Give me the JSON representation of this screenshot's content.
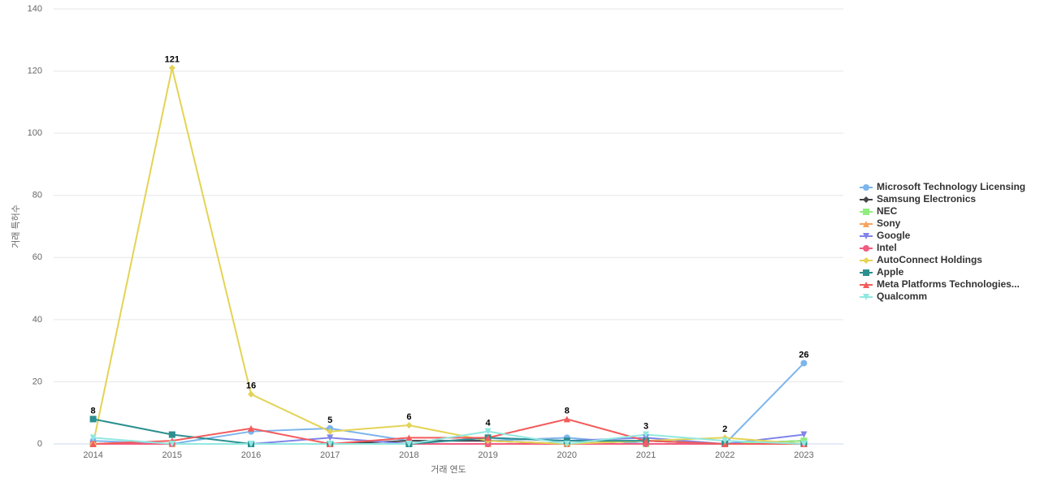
{
  "chart_data": {
    "type": "line",
    "x_label": "거래 연도",
    "y_label": "거래 특허수",
    "categories": [
      "2014",
      "2015",
      "2016",
      "2017",
      "2018",
      "2019",
      "2020",
      "2021",
      "2022",
      "2023"
    ],
    "ylim": [
      0,
      140
    ],
    "yticks": [
      0,
      20,
      40,
      60,
      80,
      100,
      120,
      140
    ],
    "grid": true,
    "legend": "right",
    "series": [
      {
        "name": "Microsoft Technology Licensing",
        "color": "#7cb5ec",
        "marker": "circle",
        "values": [
          1,
          0,
          4,
          5,
          1,
          1,
          2,
          0,
          0,
          26
        ]
      },
      {
        "name": "Samsung Electronics",
        "color": "#434348",
        "marker": "diamond",
        "values": [
          0,
          0,
          0,
          0,
          1,
          1,
          0,
          1,
          0,
          1
        ]
      },
      {
        "name": "NEC",
        "color": "#90ed7d",
        "marker": "square",
        "values": [
          0,
          0,
          0,
          0,
          0,
          0,
          0,
          0,
          0,
          1
        ]
      },
      {
        "name": "Sony",
        "color": "#f7a35c",
        "marker": "triangle",
        "values": [
          0,
          0,
          0,
          0,
          0,
          0,
          0,
          1,
          0,
          0
        ]
      },
      {
        "name": "Google",
        "color": "#8085e9",
        "marker": "triangle-down",
        "values": [
          0,
          0,
          0,
          2,
          0,
          2,
          1,
          2,
          0,
          3
        ]
      },
      {
        "name": "Intel",
        "color": "#f15c80",
        "marker": "circle",
        "values": [
          0,
          0,
          0,
          0,
          0,
          0,
          0,
          0,
          0,
          0
        ]
      },
      {
        "name": "AutoConnect Holdings",
        "color": "#e4d354",
        "marker": "diamond",
        "values": [
          0,
          121,
          16,
          4,
          6,
          1,
          0,
          1,
          2,
          0
        ]
      },
      {
        "name": "Apple",
        "color": "#2b908f",
        "marker": "square",
        "values": [
          8,
          3,
          0,
          0,
          0,
          2,
          1,
          1,
          0,
          0
        ]
      },
      {
        "name": "Meta Platforms Technologies...",
        "color": "#f45b5b",
        "marker": "triangle",
        "values": [
          0,
          1,
          5,
          0,
          2,
          2,
          8,
          1,
          0,
          0
        ]
      },
      {
        "name": "Qualcomm",
        "color": "#91e8e1",
        "marker": "triangle-down",
        "values": [
          2,
          0,
          0,
          0,
          0,
          4,
          0,
          3,
          1,
          0
        ]
      }
    ]
  }
}
